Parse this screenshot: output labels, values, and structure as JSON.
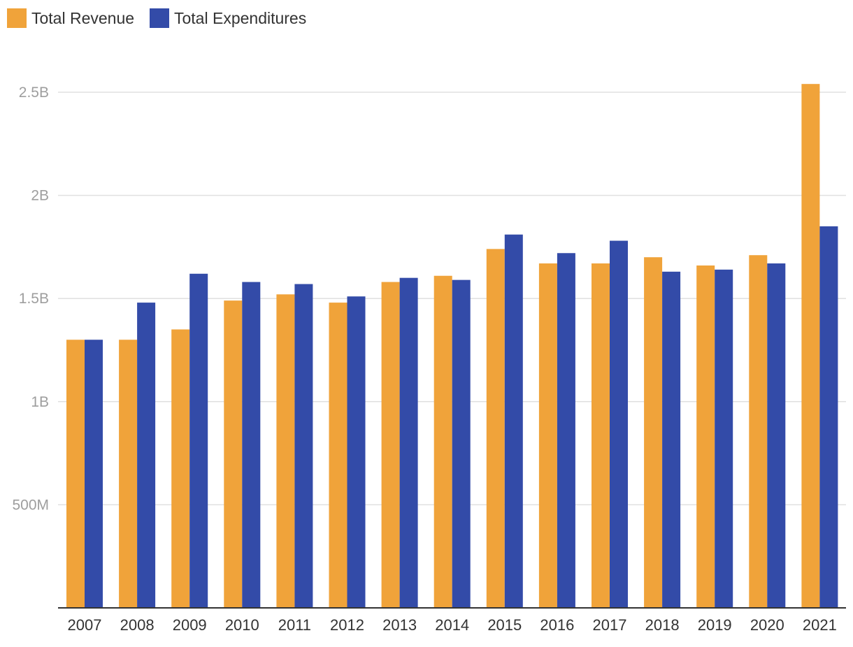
{
  "chart_data": {
    "type": "bar",
    "title": "",
    "xlabel": "",
    "ylabel": "",
    "legend_position": "top-left",
    "grid": true,
    "categories": [
      "2007",
      "2008",
      "2009",
      "2010",
      "2011",
      "2012",
      "2013",
      "2014",
      "2015",
      "2016",
      "2017",
      "2018",
      "2019",
      "2020",
      "2021"
    ],
    "series": [
      {
        "name": "Total Revenue",
        "color": "#f0a33a",
        "values": [
          1300000000,
          1300000000,
          1350000000,
          1490000000,
          1520000000,
          1480000000,
          1580000000,
          1610000000,
          1740000000,
          1670000000,
          1670000000,
          1700000000,
          1660000000,
          1710000000,
          2540000000
        ]
      },
      {
        "name": "Total Expenditures",
        "color": "#334ba8",
        "values": [
          1300000000,
          1480000000,
          1620000000,
          1580000000,
          1570000000,
          1510000000,
          1600000000,
          1590000000,
          1810000000,
          1720000000,
          1780000000,
          1630000000,
          1640000000,
          1670000000,
          1850000000
        ]
      }
    ],
    "ylim": [
      0,
      2500000000
    ],
    "y_ticks": [
      {
        "value": 500000000,
        "label": "500M"
      },
      {
        "value": 1000000000,
        "label": "1B"
      },
      {
        "value": 1500000000,
        "label": "1.5B"
      },
      {
        "value": 2000000000,
        "label": "2B"
      },
      {
        "value": 2500000000,
        "label": "2.5B"
      }
    ],
    "grid_color": "#e0e0e0",
    "axis_color": "#333333"
  }
}
